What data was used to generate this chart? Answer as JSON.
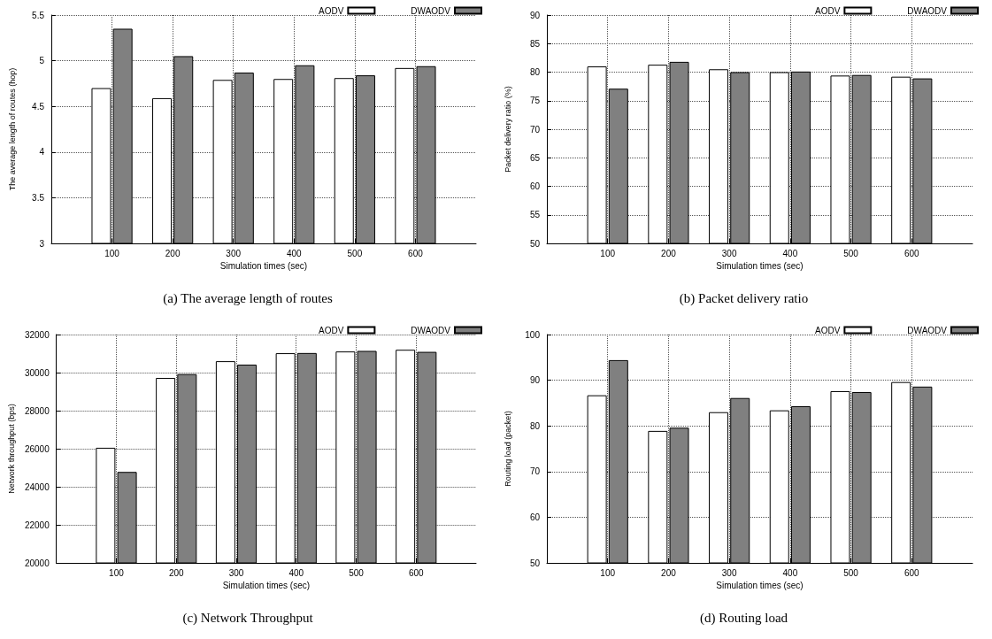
{
  "chart_data": [
    {
      "type": "bar",
      "title": "(a) The average length of routes",
      "xlabel": "Simulation times (sec)",
      "ylabel": "The average length of routes (hop)",
      "x": [
        100,
        200,
        300,
        400,
        500,
        600
      ],
      "xlim": [
        0,
        700
      ],
      "xticks": [
        100,
        200,
        300,
        400,
        500,
        600
      ],
      "ylim": [
        3,
        5.5
      ],
      "yticks": [
        3,
        3.5,
        4,
        4.5,
        5,
        5.5
      ],
      "grid": true,
      "legend": "top right",
      "series": [
        {
          "name": "AODV",
          "color": "#ffffff",
          "values": [
            4.7,
            4.59,
            4.79,
            4.8,
            4.81,
            4.92
          ]
        },
        {
          "name": "DWAODV",
          "color": "#808080",
          "values": [
            5.35,
            5.05,
            4.87,
            4.95,
            4.84,
            4.94
          ]
        }
      ]
    },
    {
      "type": "bar",
      "title": "(b) Packet delivery ratio",
      "xlabel": "Simulation times (sec)",
      "ylabel": "Packet delivery ratio (%)",
      "x": [
        100,
        200,
        300,
        400,
        500,
        600
      ],
      "xlim": [
        0,
        700
      ],
      "xticks": [
        100,
        200,
        300,
        400,
        500,
        600
      ],
      "ylim": [
        50,
        90
      ],
      "yticks": [
        50,
        55,
        60,
        65,
        70,
        75,
        80,
        85,
        90
      ],
      "grid": true,
      "legend": "top right",
      "series": [
        {
          "name": "AODV",
          "color": "#ffffff",
          "values": [
            81.0,
            81.3,
            80.5,
            80.0,
            79.4,
            79.2
          ]
        },
        {
          "name": "DWAODV",
          "color": "#808080",
          "values": [
            77.1,
            81.8,
            80.0,
            80.1,
            79.5,
            78.9
          ]
        }
      ]
    },
    {
      "type": "bar",
      "title": "(c) Network Throughput",
      "xlabel": "Simulation times (sec)",
      "ylabel": "Network throughput (bps)",
      "x": [
        100,
        200,
        300,
        400,
        500,
        600
      ],
      "xlim": [
        0,
        700
      ],
      "xticks": [
        100,
        200,
        300,
        400,
        500,
        600
      ],
      "ylim": [
        20000,
        32000
      ],
      "yticks": [
        20000,
        22000,
        24000,
        26000,
        28000,
        30000,
        32000
      ],
      "grid": true,
      "legend": "top right",
      "series": [
        {
          "name": "AODV",
          "color": "#ffffff",
          "values": [
            26050,
            29720,
            30600,
            31020,
            31110,
            31200
          ]
        },
        {
          "name": "DWAODV",
          "color": "#808080",
          "values": [
            24780,
            29920,
            30420,
            31030,
            31140,
            31090
          ]
        }
      ]
    },
    {
      "type": "bar",
      "title": "(d) Routing load",
      "xlabel": "Simulation times (sec)",
      "ylabel": "Routing load (packet)",
      "x": [
        100,
        200,
        300,
        400,
        500,
        600
      ],
      "xlim": [
        0,
        700
      ],
      "xticks": [
        100,
        200,
        300,
        400,
        500,
        600
      ],
      "ylim": [
        50,
        100
      ],
      "yticks": [
        50,
        60,
        70,
        80,
        90,
        100
      ],
      "grid": true,
      "legend": "top right",
      "series": [
        {
          "name": "AODV",
          "color": "#ffffff",
          "values": [
            86.7,
            78.9,
            83.0,
            83.4,
            87.6,
            89.6
          ]
        },
        {
          "name": "DWAODV",
          "color": "#808080",
          "values": [
            94.4,
            79.6,
            86.1,
            84.3,
            87.4,
            88.6
          ]
        }
      ]
    }
  ]
}
